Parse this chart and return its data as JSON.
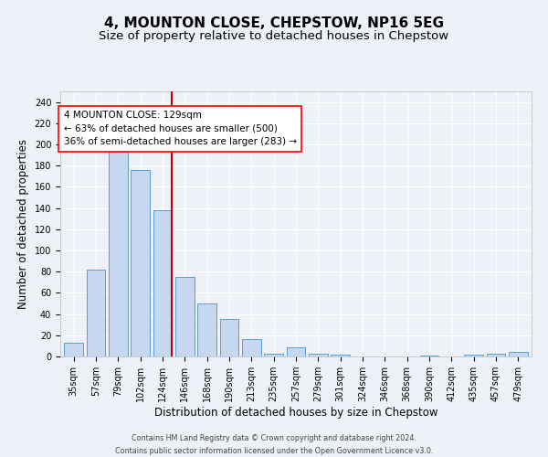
{
  "title": "4, MOUNTON CLOSE, CHEPSTOW, NP16 5EG",
  "subtitle": "Size of property relative to detached houses in Chepstow",
  "xlabel": "Distribution of detached houses by size in Chepstow",
  "ylabel": "Number of detached properties",
  "bar_labels": [
    "35sqm",
    "57sqm",
    "79sqm",
    "102sqm",
    "124sqm",
    "146sqm",
    "168sqm",
    "190sqm",
    "213sqm",
    "235sqm",
    "257sqm",
    "279sqm",
    "301sqm",
    "324sqm",
    "346sqm",
    "368sqm",
    "390sqm",
    "412sqm",
    "435sqm",
    "457sqm",
    "479sqm"
  ],
  "bar_values": [
    13,
    82,
    193,
    176,
    138,
    75,
    50,
    35,
    16,
    3,
    9,
    3,
    2,
    0,
    0,
    0,
    1,
    0,
    2,
    3,
    4
  ],
  "bar_color": "#c5d8f0",
  "bar_edgecolor": "#5a9fd4",
  "vline_color": "#cc0000",
  "annotation_text": "4 MOUNTON CLOSE: 129sqm\n← 63% of detached houses are smaller (500)\n36% of semi-detached houses are larger (283) →",
  "ylim": [
    0,
    250
  ],
  "yticks": [
    0,
    20,
    40,
    60,
    80,
    100,
    120,
    140,
    160,
    180,
    200,
    220,
    240
  ],
  "footer_line1": "Contains HM Land Registry data © Crown copyright and database right 2024.",
  "footer_line2": "Contains public sector information licensed under the Open Government Licence v3.0.",
  "bg_color": "#eef2f8",
  "grid_color": "#ffffff",
  "title_fontsize": 11,
  "subtitle_fontsize": 9.5,
  "label_fontsize": 8.5,
  "tick_fontsize": 7,
  "annotation_fontsize": 7.5,
  "footer_fontsize": 5.8
}
